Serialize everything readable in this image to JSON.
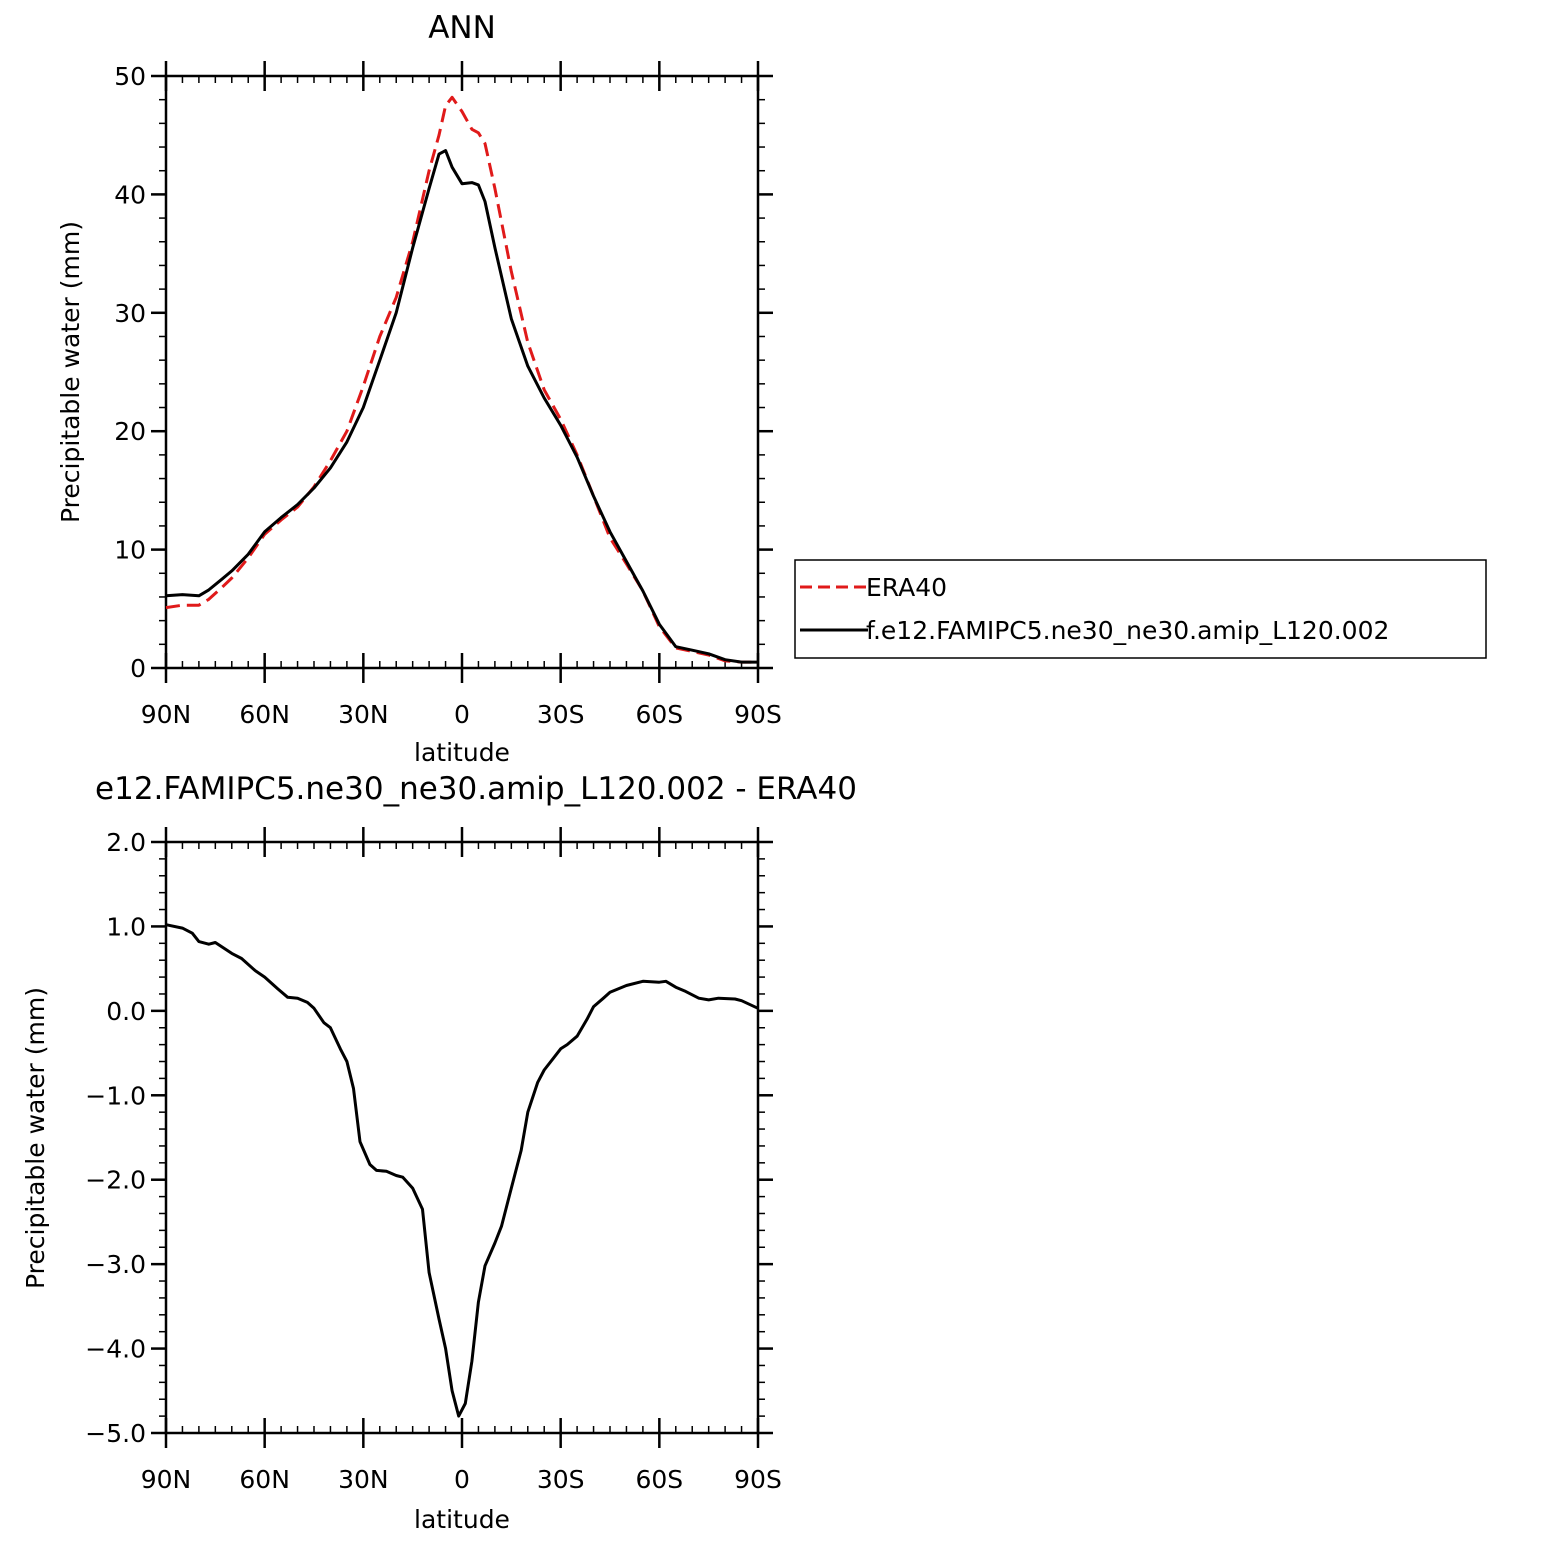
{
  "chart_data": [
    {
      "type": "line",
      "title": "ANN",
      "xlabel": "latitude",
      "ylabel": "Precipitable water (mm)",
      "xlim": [
        90,
        -90
      ],
      "ylim": [
        0,
        50
      ],
      "x_tick_values": [
        90,
        60,
        30,
        0,
        -30,
        -60,
        -90
      ],
      "x_tick_labels": [
        "90N",
        "60N",
        "30N",
        "0",
        "30S",
        "60S",
        "90S"
      ],
      "y_tick_values": [
        0,
        10,
        20,
        30,
        40,
        50
      ],
      "y_tick_labels": [
        "0",
        "10",
        "20",
        "30",
        "40",
        "50"
      ],
      "legend": "right",
      "grid": false,
      "x": [
        90,
        85,
        80,
        77,
        73,
        70,
        65,
        60,
        55,
        50,
        45,
        40,
        35,
        30,
        25,
        20,
        15,
        10,
        7,
        5,
        3,
        0,
        -3,
        -5,
        -7,
        -10,
        -15,
        -20,
        -25,
        -30,
        -35,
        -40,
        -45,
        -50,
        -55,
        -60,
        -65,
        -70,
        -75,
        -80,
        -85,
        -90
      ],
      "series": [
        {
          "name": "ERA40",
          "color": "#e01a1a",
          "dash": "dashed",
          "values": [
            5.1,
            5.3,
            5.3,
            5.8,
            6.8,
            7.6,
            9.3,
            11.3,
            12.5,
            13.6,
            15.3,
            17.5,
            20.0,
            23.8,
            28.0,
            31.3,
            36.0,
            42.0,
            45.0,
            47.5,
            48.2,
            47.0,
            45.5,
            45.2,
            44.3,
            40.5,
            33.5,
            27.5,
            23.5,
            21.0,
            18.0,
            14.5,
            11.0,
            8.8,
            6.5,
            3.5,
            1.7,
            1.4,
            1.1,
            0.6,
            0.5,
            0.5
          ]
        },
        {
          "name": "f.e12.FAMIPC5.ne30_ne30.amip_L120.002",
          "color": "#000000",
          "dash": "solid",
          "values": [
            6.1,
            6.2,
            6.1,
            6.6,
            7.5,
            8.2,
            9.6,
            11.5,
            12.7,
            13.8,
            15.2,
            16.9,
            19.1,
            22.0,
            26.0,
            30.0,
            35.5,
            40.5,
            43.4,
            43.7,
            42.3,
            40.9,
            41.0,
            40.8,
            39.4,
            35.5,
            29.5,
            25.5,
            22.8,
            20.5,
            17.8,
            14.5,
            11.5,
            9.0,
            6.5,
            3.7,
            1.8,
            1.5,
            1.2,
            0.7,
            0.5,
            0.5
          ]
        }
      ]
    },
    {
      "type": "line",
      "title": "e12.FAMIPC5.ne30_ne30.amip_L120.002 - ERA40",
      "xlabel": "latitude",
      "ylabel": "Precipitable water (mm)",
      "xlim": [
        90,
        -90
      ],
      "ylim": [
        -5.0,
        2.0
      ],
      "x_tick_values": [
        90,
        60,
        30,
        0,
        -30,
        -60,
        -90
      ],
      "x_tick_labels": [
        "90N",
        "60N",
        "30N",
        "0",
        "30S",
        "60S",
        "90S"
      ],
      "y_tick_values": [
        2.0,
        1.0,
        0.0,
        -1.0,
        -2.0,
        -3.0,
        -4.0,
        -5.0
      ],
      "y_tick_labels": [
        "2.0",
        "1.0",
        "0.0",
        "−1.0",
        "−2.0",
        "−3.0",
        "−4.0",
        "−5.0"
      ],
      "grid": false,
      "x": [
        90,
        85,
        82,
        80,
        77,
        75,
        70,
        67,
        63,
        60,
        56,
        53,
        50,
        47,
        45,
        42,
        40,
        37,
        35,
        33,
        31,
        28,
        26,
        23,
        20,
        18,
        15,
        12,
        10,
        7,
        5,
        3,
        1,
        -1,
        -3,
        -5,
        -7,
        -10,
        -12,
        -15,
        -18,
        -20,
        -23,
        -25,
        -28,
        -30,
        -32,
        -35,
        -38,
        -40,
        -43,
        -45,
        -50,
        -55,
        -60,
        -62,
        -65,
        -68,
        -72,
        -75,
        -78,
        -83,
        -85,
        -90
      ],
      "series": [
        {
          "name": "",
          "color": "#000000",
          "dash": "solid",
          "values": [
            1.02,
            0.98,
            0.92,
            0.82,
            0.79,
            0.81,
            0.68,
            0.62,
            0.48,
            0.4,
            0.26,
            0.16,
            0.15,
            0.1,
            0.03,
            -0.14,
            -0.2,
            -0.45,
            -0.6,
            -0.92,
            -1.55,
            -1.82,
            -1.89,
            -1.9,
            -1.95,
            -1.97,
            -2.1,
            -2.35,
            -3.1,
            -3.65,
            -4.0,
            -4.5,
            -4.8,
            -4.65,
            -4.15,
            -3.45,
            -3.02,
            -2.75,
            -2.55,
            -2.1,
            -1.65,
            -1.2,
            -0.85,
            -0.7,
            -0.55,
            -0.45,
            -0.4,
            -0.3,
            -0.1,
            0.05,
            0.15,
            0.22,
            0.3,
            0.35,
            0.34,
            0.35,
            0.28,
            0.23,
            0.15,
            0.13,
            0.15,
            0.14,
            0.12,
            0.03
          ]
        }
      ]
    }
  ]
}
